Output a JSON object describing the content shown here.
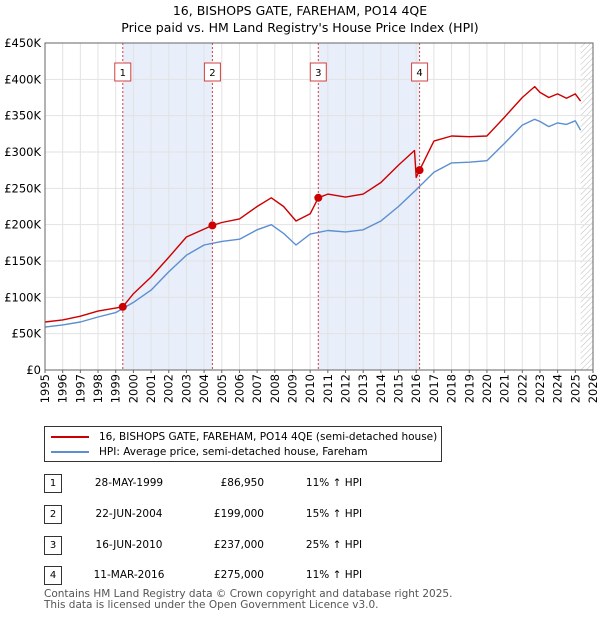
{
  "header": {
    "title": "16, BISHOPS GATE, FAREHAM, PO14 4QE",
    "subtitle": "Price paid vs. HM Land Registry's House Price Index (HPI)"
  },
  "chart_data": {
    "type": "line",
    "title": "16, BISHOPS GATE, FAREHAM, PO14 4QE",
    "subtitle": "Price paid vs. HM Land Registry's House Price Index (HPI)",
    "xlabel": "",
    "ylabel": "",
    "xlim": [
      1995,
      2026
    ],
    "ylim": [
      0,
      450000
    ],
    "x_ticks": [
      "1995",
      "1996",
      "1997",
      "1998",
      "1999",
      "2000",
      "2001",
      "2002",
      "2003",
      "2004",
      "2005",
      "2006",
      "2007",
      "2008",
      "2009",
      "2010",
      "2011",
      "2012",
      "2013",
      "2014",
      "2015",
      "2016",
      "2017",
      "2018",
      "2019",
      "2020",
      "2021",
      "2022",
      "2023",
      "2024",
      "2025",
      "2026"
    ],
    "y_ticks": [
      {
        "value": 0,
        "label": "£0"
      },
      {
        "value": 50000,
        "label": "£50K"
      },
      {
        "value": 100000,
        "label": "£100K"
      },
      {
        "value": 150000,
        "label": "£150K"
      },
      {
        "value": 200000,
        "label": "£200K"
      },
      {
        "value": 250000,
        "label": "£250K"
      },
      {
        "value": 300000,
        "label": "£300K"
      },
      {
        "value": 350000,
        "label": "£350K"
      },
      {
        "value": 400000,
        "label": "£400K"
      },
      {
        "value": 450000,
        "label": "£450K"
      }
    ],
    "grid": true,
    "colors": {
      "property": "#cc0000",
      "hpi": "#5b8fcf",
      "shade": "#e8eefa",
      "vline": "#d04040",
      "hatch": "#bbbbbb"
    },
    "series": [
      {
        "name": "16, BISHOPS GATE, FAREHAM, PO14 4QE (semi-detached house)",
        "color": "#cc0000",
        "x": [
          1995,
          1996,
          1997,
          1998,
          1999.4,
          2000,
          2001,
          2002,
          2003,
          2004.47,
          2005,
          2006,
          2007,
          2007.8,
          2008.5,
          2009.2,
          2010,
          2010.46,
          2011,
          2012,
          2013,
          2014,
          2015,
          2015.9,
          2016,
          2016.19,
          2017,
          2018,
          2019,
          2020,
          2021,
          2022,
          2022.7,
          2023,
          2023.5,
          2024,
          2024.5,
          2025,
          2025.3
        ],
        "y": [
          66000,
          69000,
          74000,
          81000,
          86950,
          105000,
          128000,
          155000,
          183000,
          199000,
          203000,
          208000,
          225000,
          237000,
          225000,
          205000,
          215000,
          237000,
          242000,
          238000,
          242000,
          258000,
          282000,
          302000,
          265000,
          275000,
          315000,
          322000,
          321000,
          322000,
          348000,
          375000,
          390000,
          382000,
          375000,
          380000,
          374000,
          380000,
          370000
        ]
      },
      {
        "name": "HPI: Average price, semi-detached house, Fareham",
        "color": "#5b8fcf",
        "x": [
          1995,
          1996,
          1997,
          1998,
          1999,
          2000,
          2001,
          2002,
          2003,
          2004,
          2005,
          2006,
          2007,
          2007.8,
          2008.5,
          2009.2,
          2010,
          2011,
          2012,
          2013,
          2014,
          2015,
          2016,
          2017,
          2018,
          2019,
          2020,
          2021,
          2022,
          2022.7,
          2023,
          2023.5,
          2024,
          2024.5,
          2025,
          2025.3
        ],
        "y": [
          59000,
          62000,
          66000,
          73000,
          79000,
          93000,
          110000,
          135000,
          158000,
          172000,
          177000,
          180000,
          193000,
          200000,
          188000,
          172000,
          187000,
          192000,
          190000,
          193000,
          205000,
          225000,
          248000,
          272000,
          285000,
          286000,
          288000,
          312000,
          337000,
          345000,
          342000,
          335000,
          340000,
          338000,
          343000,
          330000
        ]
      }
    ],
    "markers": [
      {
        "label": "1",
        "x": 1999.4,
        "y": 86950
      },
      {
        "label": "2",
        "x": 2004.47,
        "y": 199000
      },
      {
        "label": "3",
        "x": 2010.46,
        "y": 237000
      },
      {
        "label": "4",
        "x": 2016.19,
        "y": 275000
      }
    ],
    "shaded_periods": [
      [
        1999.4,
        2004.47
      ],
      [
        2010.46,
        2016.19
      ]
    ],
    "hatched_from": 2025.3
  },
  "legend": {
    "property_label": "16, BISHOPS GATE, FAREHAM, PO14 4QE (semi-detached house)",
    "hpi_label": "HPI: Average price, semi-detached house, Fareham"
  },
  "transactions": [
    {
      "num": "1",
      "date": "28-MAY-1999",
      "price": "£86,950",
      "hpi": "11% ↑ HPI"
    },
    {
      "num": "2",
      "date": "22-JUN-2004",
      "price": "£199,000",
      "hpi": "15% ↑ HPI"
    },
    {
      "num": "3",
      "date": "16-JUN-2010",
      "price": "£237,000",
      "hpi": "25% ↑ HPI"
    },
    {
      "num": "4",
      "date": "11-MAR-2016",
      "price": "£275,000",
      "hpi": "11% ↑ HPI"
    }
  ],
  "footer": {
    "line1": "Contains HM Land Registry data © Crown copyright and database right 2025.",
    "line2": "This data is licensed under the Open Government Licence v3.0."
  }
}
